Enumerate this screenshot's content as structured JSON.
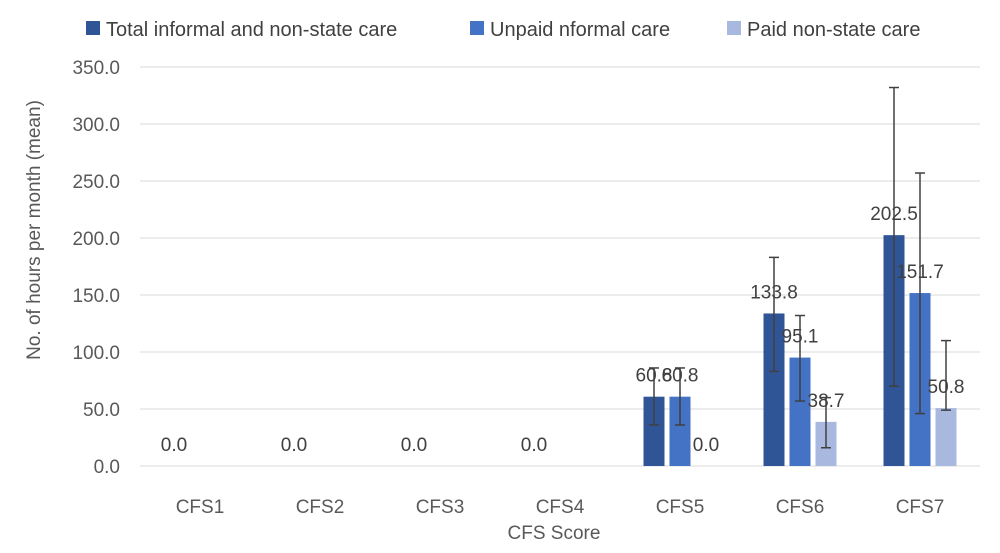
{
  "chart_data": {
    "type": "bar",
    "categories": [
      "CFS1",
      "CFS2",
      "CFS3",
      "CFS4",
      "CFS5",
      "CFS6",
      "CFS7"
    ],
    "series": [
      {
        "name": "Total informal and non-state care",
        "color": "#2f5597",
        "values": [
          0.0,
          0.0,
          0.0,
          0.0,
          60.8,
          133.8,
          202.5
        ],
        "error_low": [
          0,
          0,
          0,
          0,
          36,
          83,
          70
        ],
        "error_high": [
          0,
          0,
          0,
          0,
          86,
          183,
          332
        ]
      },
      {
        "name": "Unpaid nformal care",
        "color": "#4472c4",
        "values": [
          0.0,
          0.0,
          0.0,
          0.0,
          60.8,
          95.1,
          151.7
        ],
        "error_low": [
          0,
          0,
          0,
          0,
          36,
          57,
          46
        ],
        "error_high": [
          0,
          0,
          0,
          0,
          86,
          132,
          257
        ]
      },
      {
        "name": "Paid non-state care",
        "color": "#a9b8df",
        "values": [
          0.0,
          0.0,
          0.0,
          0.0,
          0.0,
          38.7,
          50.8
        ],
        "error_low": [
          0,
          0,
          0,
          0,
          0,
          16,
          49
        ],
        "error_high": [
          0,
          0,
          0,
          0,
          0,
          60,
          110
        ]
      }
    ],
    "data_labels": [
      [
        "0.0",
        "0.0",
        "0.0",
        "0.0",
        "60.8",
        "133.8",
        "202.5"
      ],
      [
        "",
        "",
        "",
        "",
        "60.8",
        "95.1",
        "151.7"
      ],
      [
        "",
        "",
        "",
        "",
        "0.0",
        "38.7",
        "50.8"
      ]
    ],
    "yticks": [
      "0.0",
      "50.0",
      "100.0",
      "150.0",
      "200.0",
      "250.0",
      "300.0",
      "350.0"
    ],
    "ylim": [
      0,
      350
    ],
    "xlabel": "CFS Score",
    "ylabel": "No. of hours per month (mean)",
    "legend_position": "top",
    "grid": true
  }
}
